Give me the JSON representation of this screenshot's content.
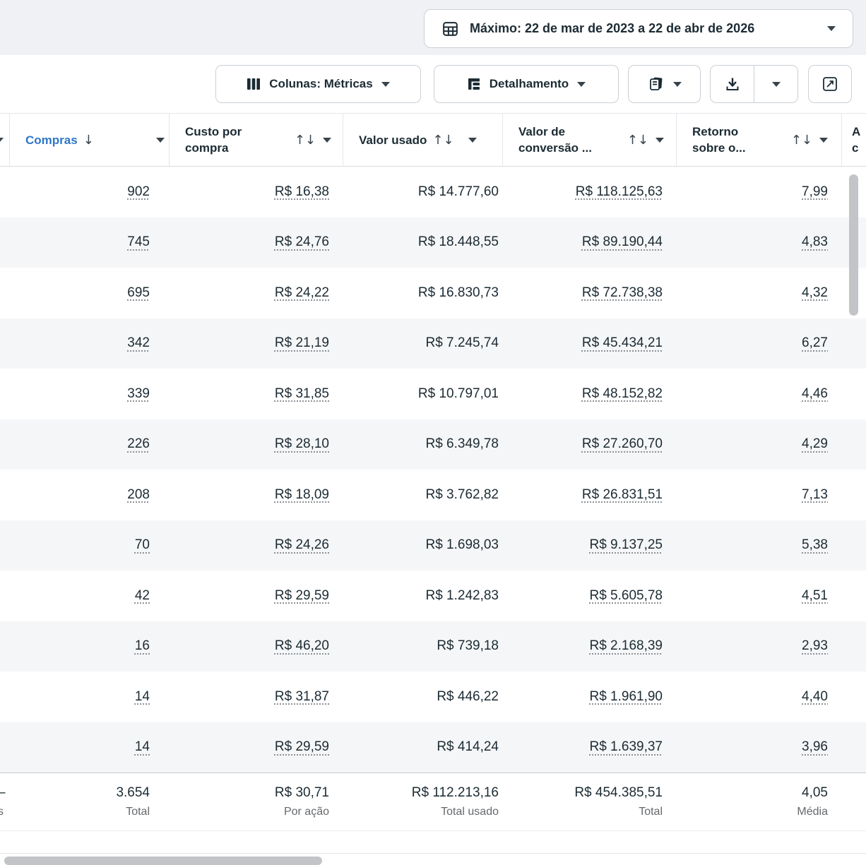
{
  "top_bar": {
    "date_range": "Máximo: 22 de mar de 2023 a 22 de abr de 2026"
  },
  "toolbar": {
    "columns_button": "Colunas: Métricas",
    "breakdown_button": "Detalhamento"
  },
  "table": {
    "header": {
      "compras": {
        "label": "Compras",
        "sort_icon": "↓"
      },
      "custo": {
        "line1": "Custo por",
        "line2": "compra",
        "sort_icon": "↑↓"
      },
      "valor_usado": {
        "label": "Valor usado",
        "sort_icon": "↑↓"
      },
      "valor_conversao": {
        "line1": "Valor de",
        "line2": "conversão ...",
        "sort_icon": "↑↓"
      },
      "retorno": {
        "line1": "Retorno",
        "line2": "sobre o...",
        "sort_icon": "↑↓"
      },
      "col_cut_right": {
        "line1": "A",
        "line2": "c"
      }
    },
    "rows": [
      {
        "compras": "902",
        "custo": "R$ 16,38",
        "valor_usado": "R$ 14.777,60",
        "valor_conversao": "R$ 118.125,63",
        "retorno": "7,99"
      },
      {
        "compras": "745",
        "custo": "R$ 24,76",
        "valor_usado": "R$ 18.448,55",
        "valor_conversao": "R$ 89.190,44",
        "retorno": "4,83"
      },
      {
        "compras": "695",
        "custo": "R$ 24,22",
        "valor_usado": "R$ 16.830,73",
        "valor_conversao": "R$ 72.738,38",
        "retorno": "4,32"
      },
      {
        "compras": "342",
        "custo": "R$ 21,19",
        "valor_usado": "R$ 7.245,74",
        "valor_conversao": "R$ 45.434,21",
        "retorno": "6,27"
      },
      {
        "compras": "339",
        "custo": "R$ 31,85",
        "valor_usado": "R$ 10.797,01",
        "valor_conversao": "R$ 48.152,82",
        "retorno": "4,46"
      },
      {
        "compras": "226",
        "custo": "R$ 28,10",
        "valor_usado": "R$ 6.349,78",
        "valor_conversao": "R$ 27.260,70",
        "retorno": "4,29"
      },
      {
        "compras": "208",
        "custo": "R$ 18,09",
        "valor_usado": "R$ 3.762,82",
        "valor_conversao": "R$ 26.831,51",
        "retorno": "7,13"
      },
      {
        "compras": "70",
        "custo": "R$ 24,26",
        "valor_usado": "R$ 1.698,03",
        "valor_conversao": "R$ 9.137,25",
        "retorno": "5,38"
      },
      {
        "compras": "42",
        "custo": "R$ 29,59",
        "valor_usado": "R$ 1.242,83",
        "valor_conversao": "R$ 5.605,78",
        "retorno": "4,51"
      },
      {
        "compras": "16",
        "custo": "R$ 46,20",
        "valor_usado": "R$ 739,18",
        "valor_conversao": "R$ 2.168,39",
        "retorno": "2,93"
      },
      {
        "compras": "14",
        "custo": "R$ 31,87",
        "valor_usado": "R$ 446,22",
        "valor_conversao": "R$ 1.961,90",
        "retorno": "4,40"
      },
      {
        "compras": "14",
        "custo": "R$ 29,59",
        "valor_usado": "R$ 414,24",
        "valor_conversao": "R$ 1.639,37",
        "retorno": "3,96"
      }
    ],
    "totals": {
      "cut_value": "–",
      "cut_label": "s",
      "compras": {
        "value": "3.654",
        "label": "Total"
      },
      "custo": {
        "value": "R$ 30,71",
        "label": "Por ação"
      },
      "valor_usado": {
        "value": "R$ 112.213,16",
        "label": "Total usado"
      },
      "valor_conversao": {
        "value": "R$ 454.385,51",
        "label": "Total"
      },
      "retorno": {
        "value": "4,05",
        "label": "Média"
      }
    }
  },
  "colors": {
    "accent_blue": "#2e76c8",
    "text_dark": "#1c2b33",
    "muted_gray": "#65686c",
    "stripe": "#f5f6f7"
  }
}
